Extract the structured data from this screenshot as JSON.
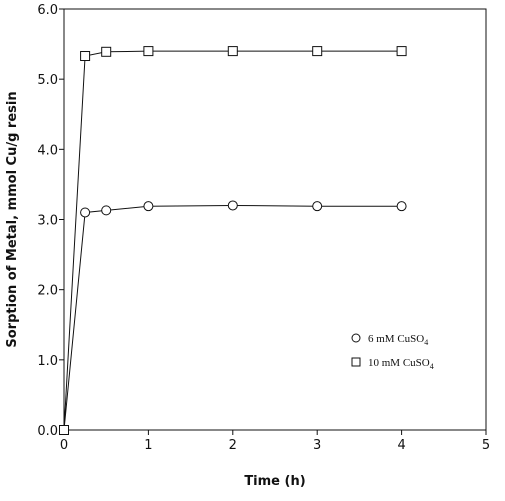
{
  "chart_data": {
    "type": "line",
    "xlabel": "Time (h)",
    "ylabel": "Sorption of Metal, mmol Cu/g resin",
    "xlim": [
      0,
      5
    ],
    "ylim": [
      0,
      6
    ],
    "xticks": [
      "0",
      "1",
      "2",
      "3",
      "4",
      "5"
    ],
    "yticks": [
      "0.0",
      "1.0",
      "2.0",
      "3.0",
      "4.0",
      "5.0",
      "6.0"
    ],
    "grid": false,
    "legend_position": "lower-right",
    "series": [
      {
        "name": "6 mM CuSO4",
        "legend_base": "6 mM CuSO",
        "legend_sub": "4",
        "marker": "circle",
        "x": [
          0,
          0.25,
          0.5,
          1,
          2,
          3,
          4
        ],
        "y": [
          0.0,
          3.1,
          3.13,
          3.19,
          3.2,
          3.19,
          3.19
        ]
      },
      {
        "name": "10 mM CuSO4",
        "legend_base": "10 mM CuSO",
        "legend_sub": "4",
        "marker": "square",
        "x": [
          0,
          0.25,
          0.5,
          1,
          2,
          3,
          4
        ],
        "y": [
          0.0,
          5.33,
          5.39,
          5.4,
          5.4,
          5.4,
          5.4
        ]
      }
    ]
  }
}
